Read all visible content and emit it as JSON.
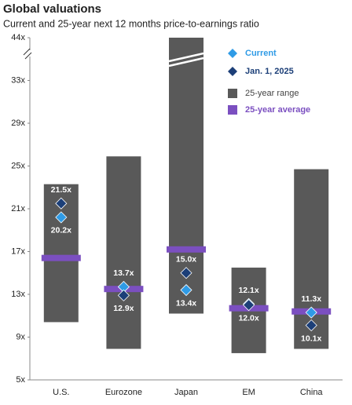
{
  "chart_data": {
    "type": "range",
    "title": "Global valuations",
    "subtitle": "Current and 25-year next 12 months price-to-earnings ratio",
    "categories": [
      "U.S.",
      "Eurozone",
      "Japan",
      "EM",
      "China"
    ],
    "series": [
      {
        "name": "25-year range",
        "color": "#595959",
        "low": [
          10.4,
          7.9,
          11.2,
          7.5,
          7.9
        ],
        "high": [
          23.3,
          25.9,
          44,
          15.5,
          24.7
        ]
      },
      {
        "name": "25-year average",
        "color": "#7b4fc0",
        "values": [
          16.4,
          13.5,
          17.2,
          11.7,
          11.4
        ]
      },
      {
        "name": "Current",
        "color": "#2f9be6",
        "values": [
          20.2,
          13.7,
          13.4,
          12.1,
          11.3
        ],
        "value_labels": [
          "20.2x",
          "13.7x",
          "13.4x",
          "12.1x",
          "11.3x"
        ]
      },
      {
        "name": "Jan. 1, 2025",
        "color": "#1c3f78",
        "values": [
          21.5,
          12.9,
          15.0,
          12.0,
          10.1
        ],
        "value_labels": [
          "21.5x",
          "12.9x",
          "15.0x",
          "12.0x",
          "10.1x"
        ]
      }
    ],
    "ylim": [
      5,
      44
    ],
    "yticks": [
      {
        "value": 5,
        "label": "5x"
      },
      {
        "value": 9,
        "label": "9x"
      },
      {
        "value": 13,
        "label": "13x"
      },
      {
        "value": 17,
        "label": "17x"
      },
      {
        "value": 21,
        "label": "21x"
      },
      {
        "value": 25,
        "label": "25x"
      },
      {
        "value": 29,
        "label": "29x"
      },
      {
        "value": 33,
        "label": "33x"
      },
      {
        "value": 44,
        "label": "44x"
      }
    ]
  }
}
